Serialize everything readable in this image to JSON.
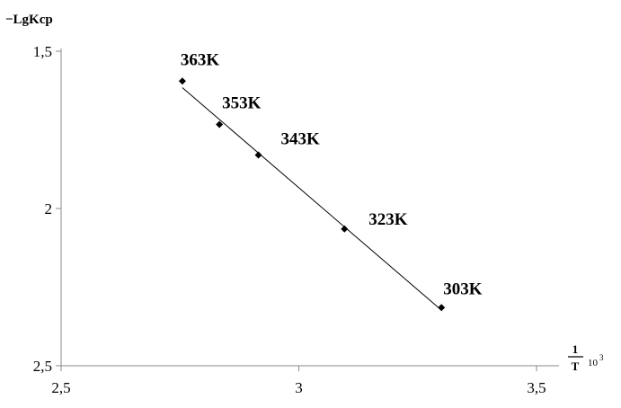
{
  "chart_data": {
    "type": "scatter",
    "ylabel": "−LgKcp",
    "xlabel": {
      "numerator": "1",
      "denominator": "T",
      "multiplier": "10",
      "exponent": "3"
    },
    "xlim": [
      2.5,
      3.5
    ],
    "ylim": [
      1.5,
      2.5
    ],
    "y_inverted": true,
    "x_ticks": [
      "2,5",
      "3",
      "3,5"
    ],
    "y_ticks": [
      "1,5",
      "2",
      "2,5"
    ],
    "grid": false,
    "points": [
      {
        "label": "363K",
        "x": 2.755,
        "y": 1.595
      },
      {
        "label": "353K",
        "x": 2.833,
        "y": 1.733
      },
      {
        "label": "343K",
        "x": 2.915,
        "y": 1.83
      },
      {
        "label": "323K",
        "x": 3.096,
        "y": 2.065
      },
      {
        "label": "303K",
        "x": 3.3,
        "y": 2.315
      }
    ],
    "trendline": {
      "type": "linear"
    }
  }
}
